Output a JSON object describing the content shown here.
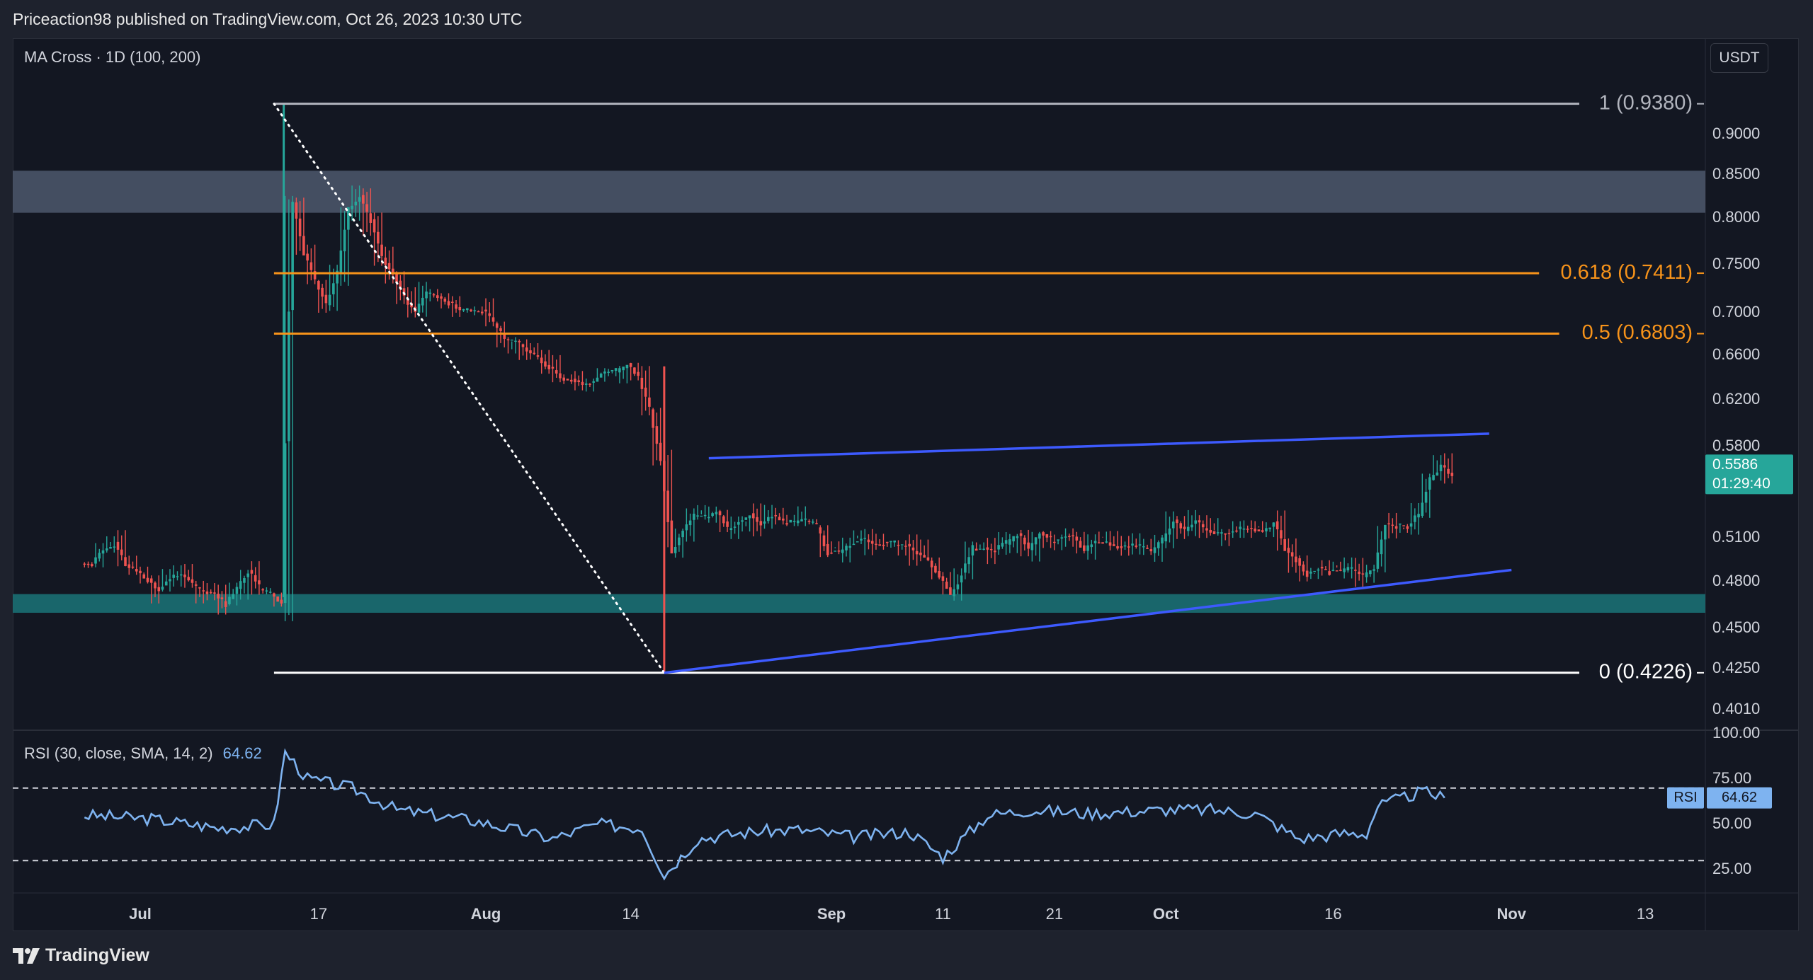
{
  "header": {
    "publisher": "Priceaction98 published on TradingView.com, Oct 26, 2023 10:30 UTC"
  },
  "legend": {
    "ma_label": "MA Cross · 1D (100, 200)",
    "rsi_label": "RSI (30, close, SMA, 14, 2)",
    "rsi_value": "64.62"
  },
  "currency_button": "USDT",
  "footer": {
    "brand": "TradingView"
  },
  "colors": {
    "background": "#131722",
    "up": "#26a69a",
    "down": "#ef5350",
    "fib_orange": "#f7931a",
    "trend_blue": "#3d5afe",
    "rsi_line": "#7eb3f0",
    "support_zone": "#1b6f73",
    "resistance_zone": "#4a5468"
  },
  "chart_data": [
    {
      "type": "candlestick",
      "title": "",
      "yaxis_ticks": [
        "0.9000",
        "0.8500",
        "0.8000",
        "0.7500",
        "0.7000",
        "0.6600",
        "0.6200",
        "0.5800",
        "0.5100",
        "0.4800",
        "0.4500",
        "0.4250",
        "0.4010"
      ],
      "xaxis_ticks": [
        "Jul",
        "17",
        "Aug",
        "14",
        "Sep",
        "11",
        "21",
        "Oct",
        "16",
        "Nov",
        "13"
      ],
      "last_price": {
        "value": "0.5586",
        "countdown": "01:29:40"
      },
      "fib_levels": [
        {
          "label": "1 (0.9380)",
          "value": 0.938
        },
        {
          "label": "0.618 (0.7411)",
          "value": 0.7411
        },
        {
          "label": "0.5 (0.6803)",
          "value": 0.6803
        },
        {
          "label": "0 (0.4226)",
          "value": 0.4226
        }
      ],
      "zones": [
        {
          "name": "resistance",
          "low": 0.806,
          "high": 0.855
        },
        {
          "name": "support",
          "low": 0.46,
          "high": 0.472
        }
      ],
      "anchors": {
        "swing_high": "Jul 13",
        "swing_low": "Aug 17"
      },
      "trend_channel": {
        "upper": {
          "from": [
            "Aug 21",
            0.571
          ],
          "to": [
            "Oct 30",
            0.591
          ]
        },
        "lower": {
          "from": [
            "Aug 17",
            0.4226
          ],
          "to": [
            "Nov 1",
            0.488
          ]
        }
      },
      "closes": [
        [
          "Jun 26",
          0.492
        ],
        [
          "Jun 28",
          0.505
        ],
        [
          "Jun 30",
          0.488
        ],
        [
          "Jul 2",
          0.478
        ],
        [
          "Jul 4",
          0.49
        ],
        [
          "Jul 6",
          0.47
        ],
        [
          "Jul 8",
          0.468
        ],
        [
          "Jul 10",
          0.486
        ],
        [
          "Jul 12",
          0.476
        ],
        [
          "Jul 13",
          0.47
        ],
        [
          "Jul 14",
          0.826
        ],
        [
          "Jul 15",
          0.76
        ],
        [
          "Jul 16",
          0.73
        ],
        [
          "Jul 17",
          0.715
        ],
        [
          "Jul 18",
          0.745
        ],
        [
          "Jul 19",
          0.81
        ],
        [
          "Jul 20",
          0.82
        ],
        [
          "Jul 21",
          0.79
        ],
        [
          "Jul 22",
          0.765
        ],
        [
          "Jul 23",
          0.74
        ],
        [
          "Jul 24",
          0.71
        ],
        [
          "Jul 25",
          0.705
        ],
        [
          "Jul 26",
          0.72
        ],
        [
          "Jul 27",
          0.712
        ],
        [
          "Jul 28",
          0.715
        ],
        [
          "Jul 29",
          0.71
        ],
        [
          "Jul 30",
          0.708
        ],
        [
          "Jul 31",
          0.7
        ],
        [
          "Aug 1",
          0.69
        ],
        [
          "Aug 3",
          0.675
        ],
        [
          "Aug 5",
          0.66
        ],
        [
          "Aug 7",
          0.635
        ],
        [
          "Aug 9",
          0.628
        ],
        [
          "Aug 11",
          0.645
        ],
        [
          "Aug 13",
          0.645
        ],
        [
          "Aug 14",
          0.64
        ],
        [
          "Aug 15",
          0.615
        ],
        [
          "Aug 16",
          0.575
        ],
        [
          "Aug 17",
          0.5
        ],
        [
          "Aug 18",
          0.52
        ],
        [
          "Aug 20",
          0.528
        ],
        [
          "Aug 22",
          0.522
        ],
        [
          "Aug 24",
          0.527
        ],
        [
          "Aug 27",
          0.52
        ],
        [
          "Aug 29",
          0.528
        ],
        [
          "Aug 31",
          0.505
        ],
        [
          "Sep 3",
          0.505
        ],
        [
          "Sep 6",
          0.502
        ],
        [
          "Sep 9",
          0.5
        ],
        [
          "Sep 11",
          0.475
        ],
        [
          "Sep 13",
          0.5
        ],
        [
          "Sep 16",
          0.505
        ],
        [
          "Sep 19",
          0.51
        ],
        [
          "Sep 22",
          0.508
        ],
        [
          "Sep 25",
          0.502
        ],
        [
          "Sep 28",
          0.5
        ],
        [
          "Oct 1",
          0.52
        ],
        [
          "Oct 4",
          0.518
        ],
        [
          "Oct 7",
          0.52
        ],
        [
          "Oct 10",
          0.515
        ],
        [
          "Oct 12",
          0.49
        ],
        [
          "Oct 14",
          0.485
        ],
        [
          "Oct 17",
          0.488
        ],
        [
          "Oct 19",
          0.49
        ],
        [
          "Oct 20",
          0.516
        ],
        [
          "Oct 22",
          0.518
        ],
        [
          "Oct 24",
          0.552
        ],
        [
          "Oct 25",
          0.562
        ],
        [
          "Oct 26",
          0.5586
        ]
      ]
    },
    {
      "type": "line",
      "title": "",
      "yaxis_ticks": [
        "100.00",
        "75.00",
        "50.00",
        "25.00"
      ],
      "bands": [
        70,
        30
      ],
      "current": {
        "tag": "RSI",
        "value": "64.62"
      },
      "values": [
        [
          "Jun 26",
          55
        ],
        [
          "Jul 2",
          53
        ],
        [
          "Jul 8",
          48
        ],
        [
          "Jul 13",
          50
        ],
        [
          "Jul 14",
          90
        ],
        [
          "Jul 16",
          75
        ],
        [
          "Jul 20",
          70
        ],
        [
          "Jul 24",
          58
        ],
        [
          "Jul 31",
          52
        ],
        [
          "Aug 7",
          42
        ],
        [
          "Aug 11",
          50
        ],
        [
          "Aug 15",
          48
        ],
        [
          "Aug 17",
          22
        ],
        [
          "Aug 20",
          42
        ],
        [
          "Aug 25",
          46
        ],
        [
          "Aug 29",
          47
        ],
        [
          "Sep 3",
          43
        ],
        [
          "Sep 8",
          46
        ],
        [
          "Sep 11",
          32
        ],
        [
          "Sep 15",
          55
        ],
        [
          "Sep 19",
          58
        ],
        [
          "Sep 24",
          56
        ],
        [
          "Oct 1",
          58
        ],
        [
          "Oct 5",
          58
        ],
        [
          "Oct 9",
          56
        ],
        [
          "Oct 13",
          42
        ],
        [
          "Oct 17",
          45
        ],
        [
          "Oct 19",
          45
        ],
        [
          "Oct 20",
          60
        ],
        [
          "Oct 24",
          68
        ],
        [
          "Oct 26",
          64.62
        ]
      ]
    }
  ]
}
